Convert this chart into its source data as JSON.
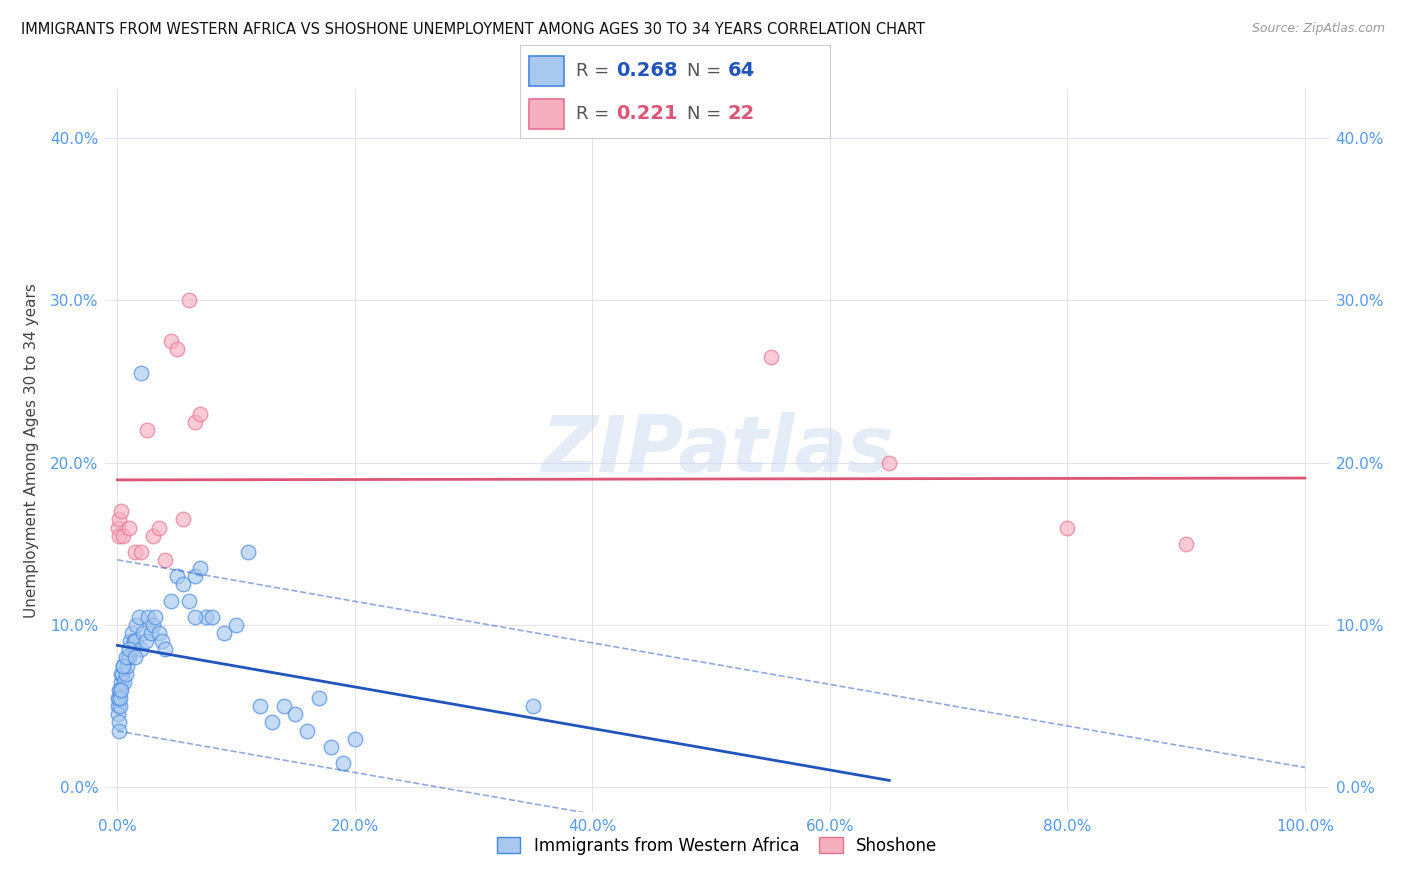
{
  "title": "IMMIGRANTS FROM WESTERN AFRICA VS SHOSHONE UNEMPLOYMENT AMONG AGES 30 TO 34 YEARS CORRELATION CHART",
  "source": "Source: ZipAtlas.com",
  "ylabel": "Unemployment Among Ages 30 to 34 years",
  "watermark": "ZIPatlas",
  "xlim": [
    -1,
    102
  ],
  "ylim": [
    -1.5,
    43
  ],
  "xticks": [
    0,
    20,
    40,
    60,
    80,
    100
  ],
  "yticks": [
    0,
    10,
    20,
    30,
    40
  ],
  "xtick_labels": [
    "0.0%",
    "20.0%",
    "40.0%",
    "60.0%",
    "80.0%",
    "100.0%"
  ],
  "ytick_labels": [
    "0.0%",
    "10.0%",
    "20.0%",
    "30.0%",
    "40.0%"
  ],
  "blue_R": "0.268",
  "blue_N": "64",
  "pink_R": "0.221",
  "pink_N": "22",
  "blue_face": "#A8C8F0",
  "pink_face": "#F5B0C0",
  "blue_edge": "#4488DD",
  "pink_edge": "#E87090",
  "blue_line": "#2255BB",
  "pink_line": "#DD5575",
  "tick_color": "#5599EE",
  "legend_label_blue": "Immigrants from Western Africa",
  "legend_label_pink": "Shoshone",
  "blue_x": [
    0.05,
    0.08,
    0.1,
    0.12,
    0.15,
    0.2,
    0.25,
    0.3,
    0.35,
    0.4,
    0.5,
    0.6,
    0.7,
    0.8,
    0.9,
    1.0,
    1.1,
    1.2,
    1.3,
    1.4,
    1.5,
    1.6,
    1.8,
    2.0,
    2.2,
    2.4,
    2.6,
    2.8,
    3.0,
    3.2,
    3.5,
    3.8,
    4.0,
    4.5,
    5.0,
    5.5,
    6.0,
    6.5,
    7.0,
    7.5,
    8.0,
    9.0,
    10.0,
    11.0,
    12.0,
    13.0,
    14.0,
    15.0,
    16.0,
    17.0,
    18.0,
    19.0,
    20.0,
    0.05,
    0.1,
    0.2,
    0.3,
    0.5,
    0.7,
    1.0,
    1.5,
    2.0,
    6.5,
    35.0
  ],
  "blue_y": [
    5.0,
    4.5,
    5.5,
    4.0,
    3.5,
    5.0,
    6.0,
    6.5,
    7.0,
    7.0,
    7.5,
    6.5,
    7.0,
    7.5,
    8.0,
    8.0,
    9.0,
    9.5,
    8.5,
    9.0,
    9.0,
    10.0,
    10.5,
    8.5,
    9.5,
    9.0,
    10.5,
    9.5,
    10.0,
    10.5,
    9.5,
    9.0,
    8.5,
    11.5,
    13.0,
    12.5,
    11.5,
    13.0,
    13.5,
    10.5,
    10.5,
    9.5,
    10.0,
    14.5,
    5.0,
    4.0,
    5.0,
    4.5,
    3.5,
    5.5,
    2.5,
    1.5,
    3.0,
    5.5,
    6.0,
    5.5,
    6.0,
    7.5,
    8.0,
    8.5,
    8.0,
    25.5,
    10.5,
    5.0
  ],
  "pink_x": [
    0.05,
    0.1,
    0.15,
    0.3,
    0.5,
    1.0,
    1.5,
    2.0,
    3.0,
    4.0,
    5.5,
    6.5,
    55.0,
    65.0,
    80.0,
    90.0,
    2.5,
    3.5,
    4.5,
    5.0,
    6.0,
    7.0
  ],
  "pink_y": [
    16.0,
    15.5,
    16.5,
    17.0,
    15.5,
    16.0,
    14.5,
    14.5,
    15.5,
    14.0,
    16.5,
    22.5,
    26.5,
    20.0,
    16.0,
    15.0,
    22.0,
    16.0,
    27.5,
    27.0,
    30.0,
    23.0
  ]
}
